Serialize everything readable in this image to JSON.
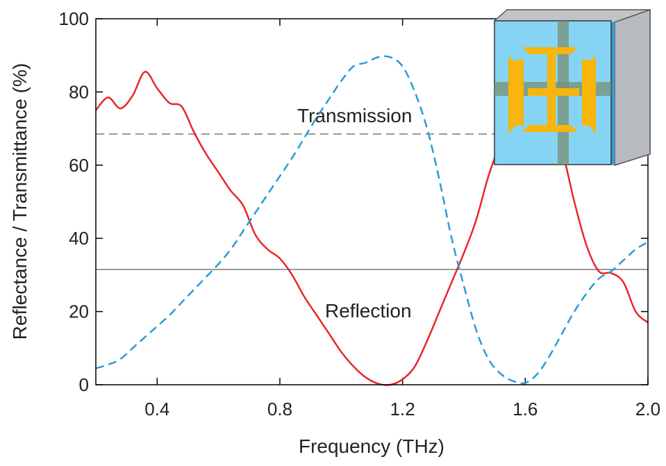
{
  "chart_data": {
    "type": "line",
    "x_label": "Frequency (THz)",
    "y_label": "Reflectance / Transmittance (%)",
    "xlim": [
      0.2,
      2.0
    ],
    "ylim": [
      0,
      100
    ],
    "xticks": [
      0.4,
      0.8,
      1.2,
      1.6,
      {
        "value": 2.0,
        "label": "2.0"
      }
    ],
    "yticks": [
      0,
      20,
      40,
      60,
      80,
      100
    ],
    "x": [
      0.2,
      0.24,
      0.28,
      0.32,
      0.36,
      0.4,
      0.44,
      0.48,
      0.52,
      0.56,
      0.6,
      0.64,
      0.68,
      0.72,
      0.76,
      0.8,
      0.84,
      0.88,
      0.92,
      0.96,
      1.0,
      1.04,
      1.08,
      1.12,
      1.16,
      1.2,
      1.24,
      1.28,
      1.32,
      1.36,
      1.4,
      1.44,
      1.48,
      1.52,
      1.56,
      1.6,
      1.64,
      1.68,
      1.72,
      1.76,
      1.8,
      1.84,
      1.88,
      1.92,
      1.96,
      2.0
    ],
    "series": [
      {
        "name": "Reflection",
        "color": "#e8262b",
        "style": "solid",
        "values": [
          75,
          78.5,
          75.5,
          79,
          85.5,
          81,
          77,
          76,
          69,
          63,
          58,
          53,
          49,
          41,
          37,
          34.5,
          30,
          24,
          19,
          14,
          9,
          5,
          2,
          0.3,
          0,
          1.5,
          5,
          12,
          20,
          28,
          36,
          45,
          57,
          66,
          72,
          76,
          76,
          72,
          64,
          50,
          38,
          31,
          30.5,
          28,
          20,
          17
        ]
      },
      {
        "name": "Transmission",
        "color": "#2a9ad8",
        "style": "dashed",
        "values": [
          4.5,
          5.5,
          7,
          10,
          13,
          16,
          19,
          22.5,
          26,
          29.5,
          33,
          37,
          42,
          47,
          52,
          57,
          62,
          67.5,
          73,
          78,
          83,
          87,
          88,
          89.5,
          89.5,
          87,
          80,
          70,
          56,
          40,
          27,
          15,
          7,
          3,
          1,
          0.5,
          3,
          8,
          14,
          20,
          25,
          29,
          31,
          34,
          37,
          39
        ]
      }
    ],
    "hlines": [
      {
        "value": 68.5,
        "color": "#999999",
        "style": "dashed"
      },
      {
        "value": 31.5,
        "color": "#999999",
        "style": "solid"
      }
    ]
  }
}
